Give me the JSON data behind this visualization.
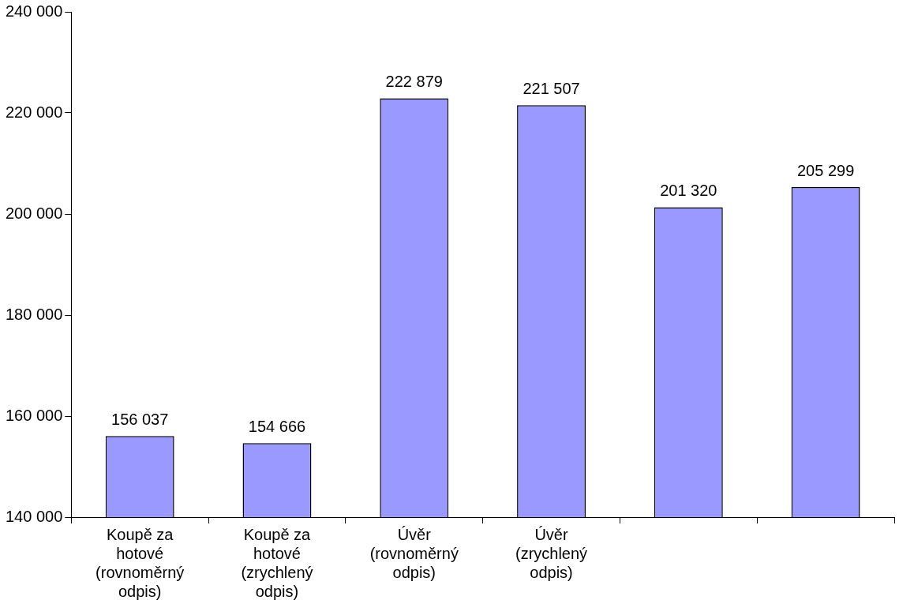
{
  "chart_data": {
    "type": "bar",
    "categories": [
      "Koupě za hotové (rovnoměrný odpis)",
      "Koupě za hotové (zrychlený odpis)",
      "Úvěr (rovnoměrný odpis)",
      "Úvěr (zrychlený odpis)",
      null,
      null
    ],
    "values": [
      156037,
      154666,
      222879,
      221507,
      201320,
      205299
    ],
    "color": "#9999ff",
    "ylim": [
      140000,
      240000
    ],
    "yticks": [
      140000,
      160000,
      180000,
      200000,
      220000,
      240000
    ],
    "grid": false,
    "legend": false,
    "data_labels": true
  }
}
